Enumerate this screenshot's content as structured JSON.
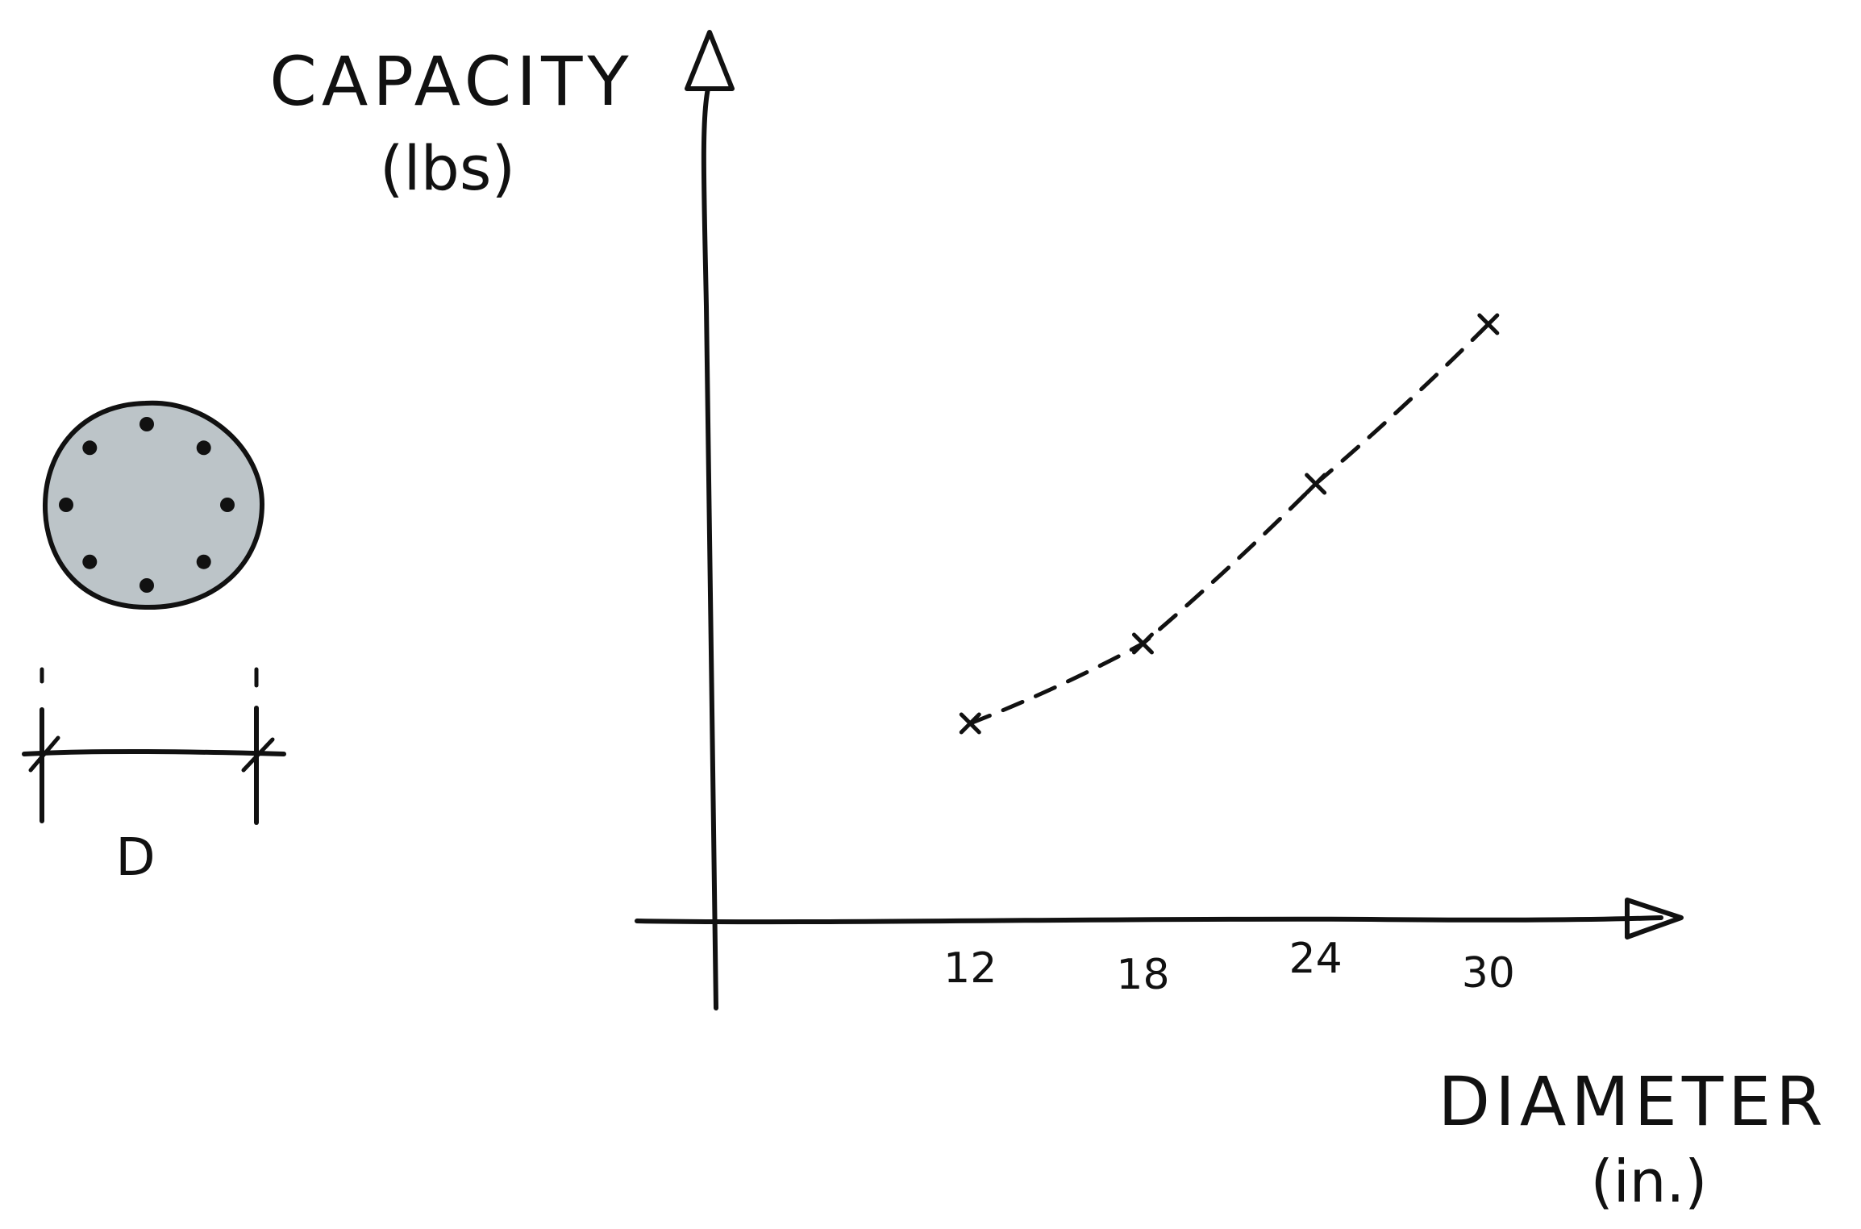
{
  "chart_data": {
    "type": "line",
    "title": "",
    "ylabel": {
      "line1": "CAPACITY",
      "line2": "(lbs)"
    },
    "xlabel": {
      "line1": "DIAMETER",
      "line2": "(in.)"
    },
    "x_ticks": [
      "12",
      "18",
      "24",
      "30"
    ],
    "x": [
      12,
      18,
      24,
      30
    ],
    "series": [
      {
        "values": [
          0.27,
          0.38,
          0.6,
          0.82
        ],
        "line_style": "dashed",
        "marker": "x"
      }
    ],
    "xlim": [
      3,
      36
    ],
    "ylim": [
      0,
      1
    ],
    "y_scale_note": "no y tick values printed; values are relative fractions of axis height",
    "grid": false
  },
  "cross_section": {
    "dimension_label": "D",
    "fill_color": "#bcc4c8",
    "rebar_count": 8
  },
  "colors": {
    "ink": "#111111",
    "background": "#ffffff"
  }
}
